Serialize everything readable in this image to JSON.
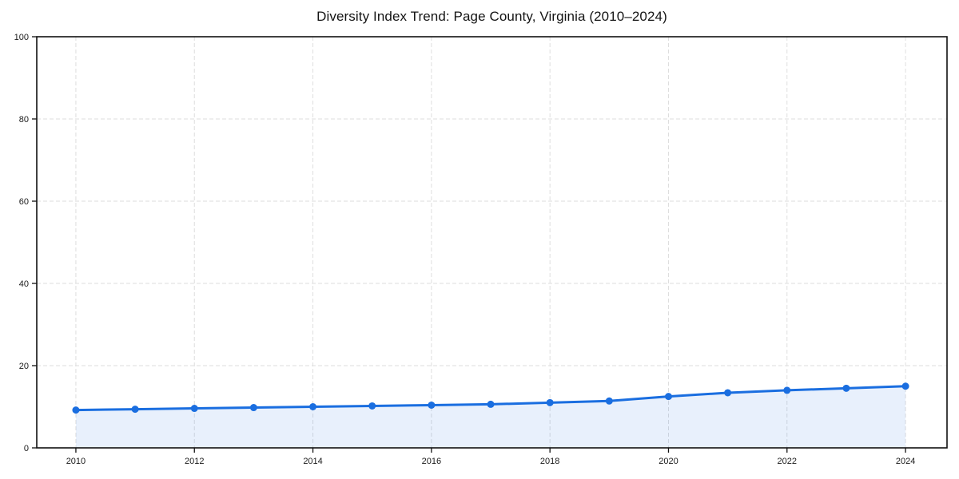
{
  "chart_data": {
    "type": "line",
    "title": "Diversity Index Trend: Page County, Virginia (2010–2024)",
    "x": [
      2010,
      2011,
      2012,
      2013,
      2014,
      2015,
      2016,
      2017,
      2018,
      2019,
      2020,
      2021,
      2022,
      2023,
      2024
    ],
    "series": [
      {
        "name": "Diversity Index",
        "values": [
          9.2,
          9.4,
          9.6,
          9.8,
          10.0,
          10.2,
          10.4,
          10.6,
          11.0,
          11.4,
          12.5,
          13.4,
          14.0,
          14.5,
          15.0
        ]
      }
    ],
    "xlabel": "",
    "ylabel": "",
    "ylim": [
      0,
      100
    ],
    "xticks": [
      2010,
      2012,
      2014,
      2016,
      2018,
      2020,
      2022,
      2024
    ],
    "yticks": [
      0,
      20,
      40,
      60,
      80,
      100
    ],
    "grid": true,
    "grid_style": "dashed",
    "legend": false,
    "marker": "circle",
    "line_color": "#1a6ee0",
    "marker_color": "#1a6ee0",
    "fill_color": "#1a6ee0",
    "fill_opacity": 0.1,
    "grid_color": "#dedede",
    "axis_color": "#111111",
    "background_color": "#ffffff"
  }
}
